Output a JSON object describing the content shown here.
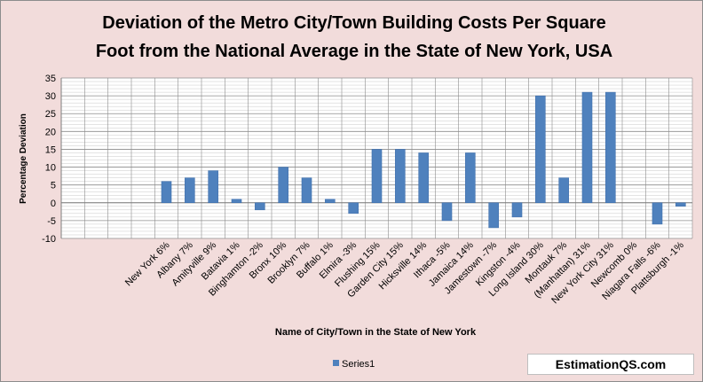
{
  "chart_data": {
    "type": "bar",
    "title_line1": "Deviation of the Metro City/Town Building Costs Per Square",
    "title_line2": "Foot from the National Average in the State of New York, USA",
    "xlabel": "Name of City/Town in the State of New York",
    "ylabel": "Percentage Deviation",
    "ylim": [
      -10,
      35
    ],
    "yticks": [
      -10,
      -5,
      0,
      5,
      10,
      15,
      20,
      25,
      30,
      35
    ],
    "grid": true,
    "legend_position": "bottom",
    "bar_color": "#4f81bd",
    "leading_blank_categories": 4,
    "categories": [
      "New York 6%",
      "Albany 7%",
      "Amityville 9%",
      "Batavia 1%",
      "Binghamton -2%",
      "Bronx 10%",
      "Brooklyn 7%",
      "Buffalo 1%",
      "Elmira -3%",
      "Flushing 15%",
      "Garden City 15%",
      "Hicksville 14%",
      "Ithaca -5%",
      "Jamaica 14%",
      "Jamestown -7%",
      "Kingston -4%",
      "Long Island 30%",
      "Montauk 7%",
      "(Manhattan) 31%",
      "New York City 31%",
      "Newcomb 0%",
      "Niagara Falls -6%",
      "Plattsburgh -1%"
    ],
    "series": [
      {
        "name": "Series1",
        "values": [
          6,
          7,
          9,
          1,
          -2,
          10,
          7,
          1,
          -3,
          15,
          15,
          14,
          -5,
          14,
          -7,
          -4,
          30,
          7,
          31,
          31,
          0,
          -6,
          -1
        ]
      }
    ]
  },
  "watermark": "EstimationQS.com"
}
